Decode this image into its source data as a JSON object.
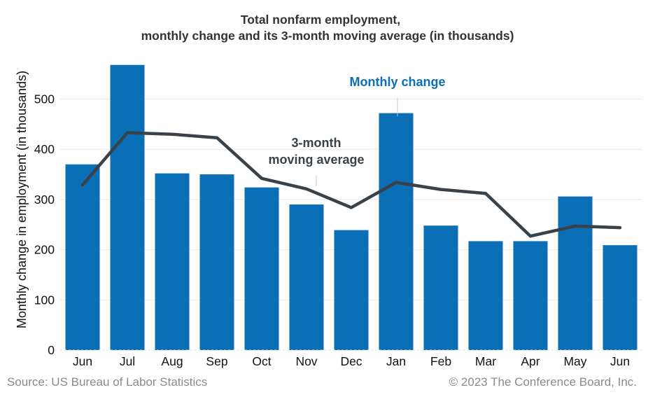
{
  "chart_data": {
    "type": "bar",
    "title": [
      "Total nonfarm employment,",
      "monthly change and its 3-month moving average (in thousands)"
    ],
    "ylabel": "Monthly change in employment (in thousands)",
    "ylim": [
      0,
      580
    ],
    "yticks": [
      0,
      100,
      200,
      300,
      400,
      500
    ],
    "grid": true,
    "categories": [
      "Jun",
      "Jul",
      "Aug",
      "Sep",
      "Oct",
      "Nov",
      "Dec",
      "Jan",
      "Feb",
      "Mar",
      "Apr",
      "May",
      "Jun"
    ],
    "series": [
      {
        "name": "Monthly change",
        "type": "bar",
        "color": "#0b6fb7",
        "values": [
          370,
          568,
          352,
          350,
          324,
          290,
          239,
          472,
          248,
          217,
          217,
          306,
          209
        ]
      },
      {
        "name": "3-month moving average",
        "type": "line",
        "color": "#3a4249",
        "values": [
          329,
          433,
          430,
          423,
          342,
          321,
          284,
          334,
          320,
          312,
          227,
          247,
          244
        ]
      }
    ],
    "annotations": {
      "monthly": "Monthly change",
      "ma_line1": "3-month",
      "ma_line2": "moving average"
    },
    "source": "Source: US Bureau of Labor Statistics",
    "copyright": "© 2023 The Conference Board, Inc."
  }
}
